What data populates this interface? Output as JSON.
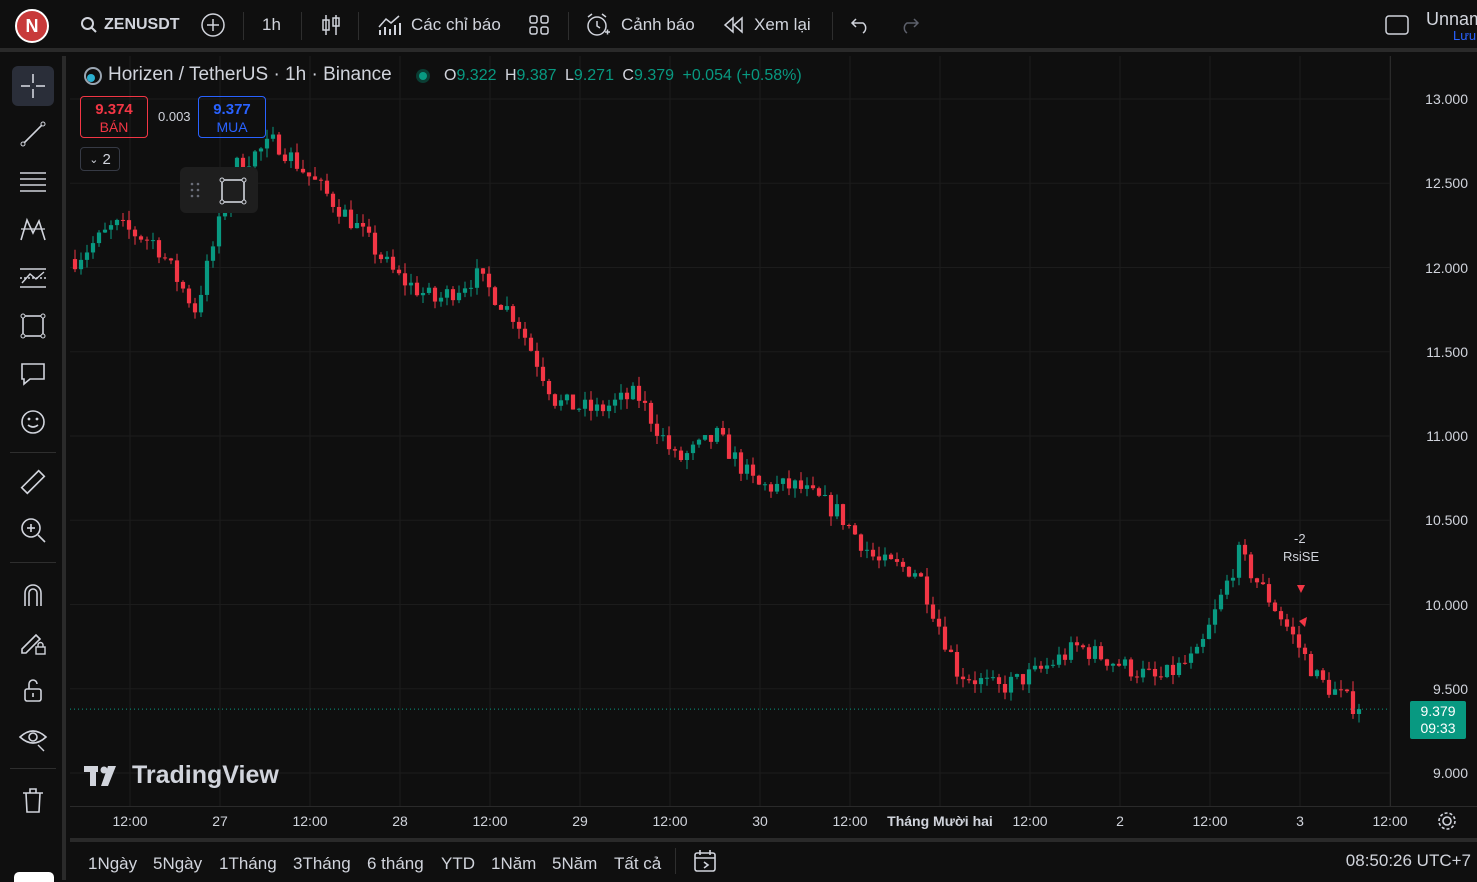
{
  "toolbar": {
    "avatar_letter": "N",
    "symbol": "ZENUSDT",
    "interval": "1h",
    "indicators": "Các chỉ báo",
    "alerts": "Cảnh báo",
    "replay": "Xem lại",
    "layout_name": "Unnam",
    "save": "Lưu"
  },
  "legend": {
    "title": "Horizen / TetherUS · 1h · Binance",
    "o_label": "O",
    "o": "9.322",
    "h_label": "H",
    "h": "9.387",
    "l_label": "L",
    "l": "9.271",
    "c_label": "C",
    "c": "9.379",
    "change": "+0.054 (+0.58%)",
    "sell_price": "9.374",
    "sell_label": "BÁN",
    "spread": "0.003",
    "buy_price": "9.377",
    "buy_label": "MUA",
    "collapsed_count": "2"
  },
  "price_axis": [
    "13.000",
    "12.500",
    "12.000",
    "11.500",
    "11.000",
    "10.500",
    "10.000",
    "9.500",
    "9.000"
  ],
  "last_price": {
    "value": "9.379",
    "countdown": "09:33"
  },
  "time_axis": [
    {
      "label": "12:00",
      "bold": false
    },
    {
      "label": "27",
      "bold": false
    },
    {
      "label": "12:00",
      "bold": false
    },
    {
      "label": "28",
      "bold": false
    },
    {
      "label": "12:00",
      "bold": false
    },
    {
      "label": "29",
      "bold": false
    },
    {
      "label": "12:00",
      "bold": false
    },
    {
      "label": "30",
      "bold": false
    },
    {
      "label": "12:00",
      "bold": false
    },
    {
      "label": "Tháng Mười hai",
      "bold": true
    },
    {
      "label": "12:00",
      "bold": false
    },
    {
      "label": "2",
      "bold": false
    },
    {
      "label": "12:00",
      "bold": false
    },
    {
      "label": "3",
      "bold": false
    },
    {
      "label": "12:00",
      "bold": false
    }
  ],
  "annotations": {
    "signal_count": "-2",
    "signal_name": "RsiSE"
  },
  "watermark": "TradingView",
  "ranges": [
    "1Ngày",
    "5Ngày",
    "1Tháng",
    "3Tháng",
    "6 tháng",
    "YTD",
    "1Năm",
    "5Năm",
    "Tất cả"
  ],
  "clock": "08:50:26 UTC+7",
  "colors": {
    "up": "#089981",
    "down": "#f23645",
    "background": "#0f0f0f",
    "grid": "#1c1c1c"
  },
  "chart_data": {
    "type": "candlestick",
    "title": "Horizen / TetherUS · 1h · Binance",
    "ylim": [
      8.85,
      13.15
    ],
    "x_labels": [
      "12:00",
      "27",
      "12:00",
      "28",
      "12:00",
      "29",
      "12:00",
      "30",
      "12:00",
      "Tháng Mười hai",
      "12:00",
      "2",
      "12:00",
      "3",
      "12:00"
    ],
    "waypoints": [
      12.05,
      12.25,
      12.15,
      11.75,
      12.6,
      12.75,
      12.5,
      12.25,
      11.95,
      11.8,
      11.95,
      11.7,
      11.2,
      11.15,
      11.25,
      10.85,
      11.0,
      10.7,
      10.7,
      10.55,
      10.25,
      10.2,
      9.6,
      9.5,
      9.6,
      9.75,
      9.65,
      9.55,
      9.7,
      10.3,
      9.95,
      9.55,
      9.38
    ],
    "n_candles": 215,
    "last": 9.379
  }
}
